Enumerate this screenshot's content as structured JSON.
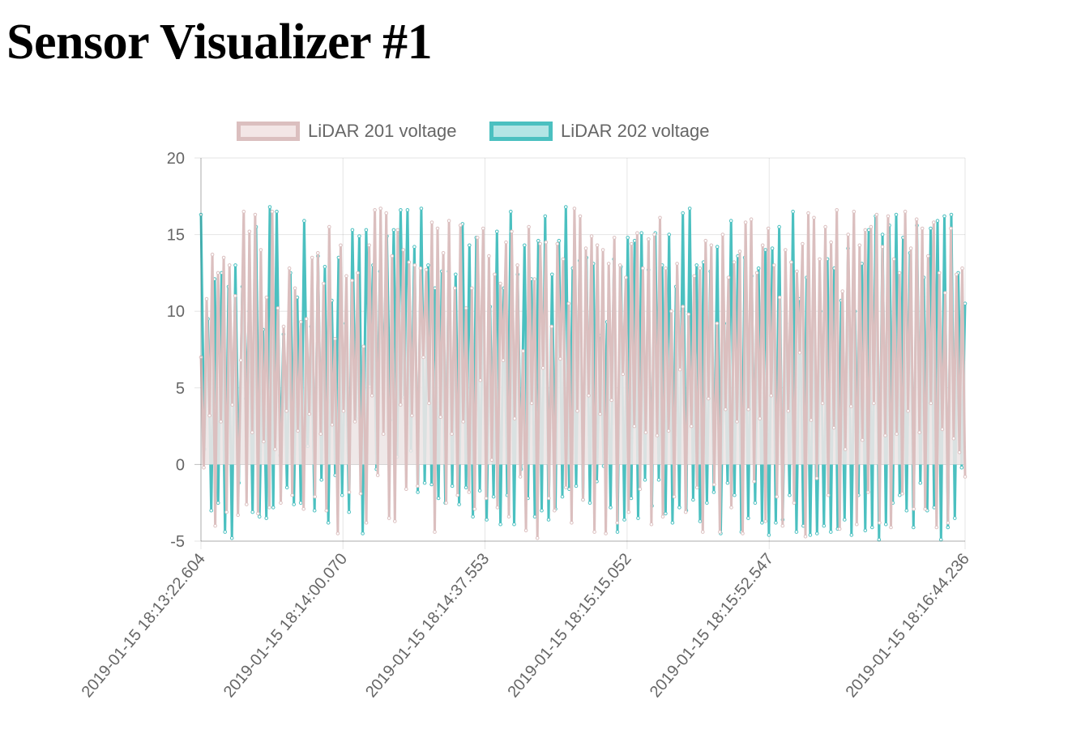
{
  "page": {
    "title": "Sensor Visualizer #1"
  },
  "chart_data": {
    "type": "line",
    "ylim": [
      -5,
      20
    ],
    "y_ticks": [
      20,
      15,
      10,
      5,
      0,
      -5
    ],
    "x_ticks": [
      "2019-01-15 18:13:22.604",
      "2019-01-15 18:14:00.070",
      "2019-01-15 18:14:37.553",
      "2019-01-15 18:15:15.052",
      "2019-01-15 18:15:52.547",
      "2019-01-15 18:16:44.236"
    ],
    "x_start": "2019-01-15 18:13:22.604",
    "x_end": "2019-01-15 18:16:44.236",
    "grid": true,
    "legend_position": "top",
    "series": [
      {
        "name": "LiDAR 201 voltage",
        "border_color": "#dbbfbf",
        "fill_color": "#f3e6e6",
        "values": [
          7.0,
          -0.2,
          10.8,
          3.2,
          13.7,
          -4.0,
          12.5,
          2.8,
          13.5,
          -3.1,
          13.0,
          3.9,
          11.0,
          -3.3,
          6.8,
          16.5,
          -2.6,
          15.2,
          2.1,
          16.3,
          -3.2,
          14.0,
          1.5,
          10.9,
          -2.8,
          16.5,
          1.0,
          10.2,
          -2.5,
          9.0,
          3.5,
          12.8,
          -2.0,
          11.5,
          2.2,
          9.3,
          -2.9,
          9.5,
          3.3,
          13.5,
          -2.1,
          13.8,
          2.0,
          11.8,
          -3.0,
          15.5,
          2.6,
          8.2,
          -4.5,
          14.3,
          3.5,
          12.3,
          -1.8,
          12.0,
          2.8,
          12.5,
          -1.9,
          7.7,
          -3.8,
          14.3,
          4.5,
          16.6,
          -0.7,
          16.7,
          2.0,
          16.4,
          -3.5,
          13.6,
          -3.7,
          15.3,
          3.9,
          14.0,
          -1.6,
          13.2,
          3.2,
          13.0,
          -1.4,
          12.8,
          7.0,
          12.7,
          4.0,
          15.8,
          -4.4,
          15.4,
          3.1,
          13.8,
          -2.5,
          15.9,
          2.0,
          11.5,
          -2.0,
          15.6,
          2.8,
          10.2,
          -1.8,
          11.5,
          -2.9,
          14.8,
          5.5,
          15.4,
          -2.2,
          13.6,
          0.3,
          12.4,
          -2.8,
          11.8,
          6.8,
          14.5,
          -3.4,
          15.2,
          3.0,
          13.0,
          -0.8,
          7.4,
          -4.3,
          15.5,
          4.0,
          12.1,
          -4.8,
          14.4,
          6.3,
          14.5,
          -2.2,
          9.0,
          -3.0,
          14.4,
          6.9,
          13.4,
          -1.5,
          10.5,
          -3.8,
          16.7,
          3.5,
          16.2,
          -2.3,
          14.1,
          4.5,
          14.9,
          -4.4,
          14.3,
          3.3,
          14.0,
          -4.5,
          13.1,
          4.2,
          14.8,
          -3.8,
          13.0,
          5.9,
          12.2,
          -3.1,
          14.4,
          2.5,
          15.1,
          -1.6,
          12.8,
          2.1,
          14.7,
          -3.9,
          15.0,
          1.9,
          16.1,
          -3.4,
          12.8,
          2.2,
          10.0,
          -2.1,
          13.1,
          6.2,
          10.3,
          -3.1,
          9.8,
          2.5,
          12.3,
          -1.5,
          12.8,
          -4.4,
          14.6,
          4.3,
          14.3,
          -1.3,
          9.2,
          -4.4,
          15.0,
          3.6,
          12.2,
          -2.8,
          13.2,
          2.8,
          13.9,
          -4.5,
          15.8,
          3.6,
          16.0,
          -1.1,
          12.5,
          3.0,
          14.3,
          -3.7,
          15.4,
          4.5,
          13.0,
          -2.1,
          10.9,
          -4.0,
          14.0,
          3.5,
          13.2,
          -2.5,
          12.6,
          7.3,
          14.4,
          -4.7,
          16.4,
          2.9,
          16.1,
          -0.9,
          13.4,
          4.0,
          15.5,
          -2.0,
          14.5,
          2.4,
          16.6,
          -4.2,
          11.3,
          1.0,
          15.0,
          3.8,
          16.5,
          -3.9,
          14.3,
          1.6,
          15.3,
          -1.8,
          15.5,
          4.0,
          16.3,
          -3.8,
          14.2,
          1.9,
          16.2,
          -4.1,
          13.4,
          2.0,
          12.5,
          -1.9,
          16.5,
          3.5,
          14.1,
          -2.9,
          16.0,
          2.1,
          15.4,
          -2.9,
          13.6,
          4.0,
          15.8,
          -4.1,
          12.5,
          2.3,
          11.2,
          -3.8,
          15.4,
          1.7,
          12.4,
          0.8,
          12.8,
          -0.8
        ]
      },
      {
        "name": "LiDAR 202 voltage",
        "border_color": "#4bc0c0",
        "fill_color": "#b3e5e5",
        "values": [
          16.3,
          1.0,
          9.5,
          -3.0,
          12.1,
          -2.5,
          12.5,
          -4.4,
          11.6,
          -4.8,
          13.0,
          -1.2,
          11.6,
          4.3,
          10.0,
          -3.1,
          15.5,
          -3.4,
          8.8,
          -3.5,
          16.8,
          -2.8,
          16.5,
          0.6,
          8.5,
          -1.5,
          12.5,
          -2.6,
          10.9,
          -2.5,
          15.9,
          1.2,
          9.0,
          -3.0,
          13.6,
          -1.0,
          12.9,
          -3.8,
          10.7,
          -0.7,
          13.5,
          -2.0,
          9.2,
          -3.1,
          15.3,
          3.0,
          14.9,
          -4.5,
          15.3,
          5.1,
          13.0,
          -0.3,
          12.6,
          6.0,
          14.9,
          2.9,
          15.3,
          0.5,
          16.6,
          4.4,
          16.6,
          0.9,
          14.2,
          -1.8,
          16.7,
          -1.2,
          13.0,
          -1.3,
          11.5,
          -2.2,
          12.6,
          -2.5,
          12.6,
          -1.4,
          12.4,
          -2.6,
          15.7,
          -1.5,
          14.3,
          -3.4,
          14.8,
          -1.7,
          11.5,
          -3.6,
          10.3,
          -2.1,
          15.2,
          -3.9,
          11.5,
          -2.0,
          16.5,
          -3.9,
          12.4,
          -0.3,
          14.3,
          -2.2,
          12.1,
          -3.4,
          14.6,
          -3.0,
          16.2,
          -3.6,
          12.4,
          -2.9,
          14.6,
          -2.1,
          16.8,
          -1.6,
          12.8,
          -1.4,
          13.3,
          -2.3,
          13.5,
          -2.5,
          13.1,
          -1.1,
          8.4,
          -0.1,
          9.3,
          -2.8,
          13.4,
          -4.4,
          12.9,
          -3.6,
          14.8,
          -2.2,
          14.6,
          -3.5,
          15.1,
          -1.0,
          12.7,
          -2.7,
          15.1,
          -1.0,
          13.0,
          -3.2,
          15.0,
          -3.8,
          11.6,
          -2.8,
          16.4,
          -3.0,
          16.7,
          -2.3,
          13.0,
          -3.7,
          13.2,
          -2.5,
          12.6,
          -1.8,
          14.2,
          -4.5,
          9.2,
          -1.2,
          15.9,
          -2.0,
          13.6,
          -4.4,
          13.5,
          -3.5,
          12.3,
          -2.5,
          12.8,
          -3.8,
          14.0,
          -4.6,
          14.1,
          -3.8,
          15.5,
          -3.6,
          9.2,
          -2.0,
          16.5,
          -4.4,
          10.8,
          -4.0,
          12.2,
          -4.6,
          10.1,
          -4.5,
          10.0,
          -4.0,
          13.4,
          -4.4,
          12.8,
          -4.2,
          10.7,
          -3.6,
          14.1,
          -4.6,
          10.0,
          -2.0,
          13.1,
          -4.3,
          15.3,
          -4.1,
          16.2,
          -4.9,
          15.0,
          -3.9,
          15.6,
          -2.5,
          16.3,
          -2.0,
          14.8,
          -3.0,
          13.8,
          -4.1,
          15.6,
          -1.2,
          12.2,
          -3.0,
          15.4,
          -2.8,
          15.9,
          -4.9,
          16.2,
          -4.1,
          16.3,
          -3.5,
          12.5,
          -0.2,
          10.5
        ]
      }
    ]
  }
}
